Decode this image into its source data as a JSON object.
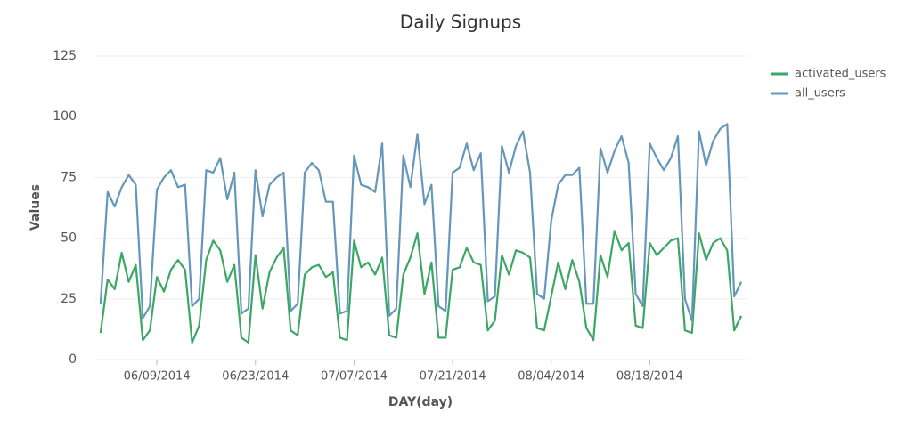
{
  "chart_data": {
    "type": "line",
    "title": "Daily Signups",
    "x_label": "DAY(day)",
    "y_label": "Values",
    "xlim": [
      "2014-05-31",
      "2014-09-01"
    ],
    "xticks": [
      {
        "value": "2014-06-09",
        "label": "06/09/2014"
      },
      {
        "value": "2014-06-23",
        "label": "06/23/2014"
      },
      {
        "value": "2014-07-07",
        "label": "07/07/2014"
      },
      {
        "value": "2014-07-21",
        "label": "07/21/2014"
      },
      {
        "value": "2014-08-04",
        "label": "08/04/2014"
      },
      {
        "value": "2014-08-18",
        "label": "08/18/2014"
      }
    ],
    "ylim": [
      0,
      125
    ],
    "yticks": [
      0,
      25,
      50,
      75,
      100,
      125
    ],
    "grid": true,
    "legend": "top-right",
    "x": [
      "2014-06-01",
      "2014-06-02",
      "2014-06-03",
      "2014-06-04",
      "2014-06-05",
      "2014-06-06",
      "2014-06-07",
      "2014-06-08",
      "2014-06-09",
      "2014-06-10",
      "2014-06-11",
      "2014-06-12",
      "2014-06-13",
      "2014-06-14",
      "2014-06-15",
      "2014-06-16",
      "2014-06-17",
      "2014-06-18",
      "2014-06-19",
      "2014-06-20",
      "2014-06-21",
      "2014-06-22",
      "2014-06-23",
      "2014-06-24",
      "2014-06-25",
      "2014-06-26",
      "2014-06-27",
      "2014-06-28",
      "2014-06-29",
      "2014-06-30",
      "2014-07-01",
      "2014-07-02",
      "2014-07-03",
      "2014-07-04",
      "2014-07-05",
      "2014-07-06",
      "2014-07-07",
      "2014-07-08",
      "2014-07-09",
      "2014-07-10",
      "2014-07-11",
      "2014-07-12",
      "2014-07-13",
      "2014-07-14",
      "2014-07-15",
      "2014-07-16",
      "2014-07-17",
      "2014-07-18",
      "2014-07-19",
      "2014-07-20",
      "2014-07-21",
      "2014-07-22",
      "2014-07-23",
      "2014-07-24",
      "2014-07-25",
      "2014-07-26",
      "2014-07-27",
      "2014-07-28",
      "2014-07-29",
      "2014-07-30",
      "2014-07-31",
      "2014-08-01",
      "2014-08-02",
      "2014-08-03",
      "2014-08-04",
      "2014-08-05",
      "2014-08-06",
      "2014-08-07",
      "2014-08-08",
      "2014-08-09",
      "2014-08-10",
      "2014-08-11",
      "2014-08-12",
      "2014-08-13",
      "2014-08-14",
      "2014-08-15",
      "2014-08-16",
      "2014-08-17",
      "2014-08-18",
      "2014-08-19",
      "2014-08-20",
      "2014-08-21",
      "2014-08-22",
      "2014-08-23",
      "2014-08-24",
      "2014-08-25",
      "2014-08-26",
      "2014-08-27",
      "2014-08-28",
      "2014-08-29",
      "2014-08-30",
      "2014-08-31"
    ],
    "series": [
      {
        "name": "activated_users",
        "color": "#3aa864",
        "values": [
          11,
          33,
          29,
          44,
          32,
          39,
          8,
          12,
          34,
          28,
          37,
          41,
          37,
          7,
          14,
          41,
          49,
          45,
          32,
          39,
          9,
          7,
          43,
          21,
          36,
          42,
          46,
          12,
          10,
          35,
          38,
          39,
          34,
          36,
          9,
          8,
          49,
          38,
          40,
          35,
          42,
          10,
          9,
          35,
          42,
          52,
          27,
          40,
          9,
          9,
          37,
          38,
          46,
          40,
          39,
          12,
          16,
          43,
          35,
          45,
          44,
          42,
          13,
          12,
          26,
          40,
          29,
          41,
          32,
          13,
          8,
          43,
          34,
          53,
          45,
          48,
          14,
          13,
          48,
          43,
          46,
          49,
          50,
          12,
          11,
          52,
          41,
          48,
          50,
          45,
          12,
          18
        ]
      },
      {
        "name": "all_users",
        "color": "#6497b9",
        "values": [
          23,
          69,
          63,
          71,
          76,
          72,
          17,
          22,
          70,
          75,
          78,
          71,
          72,
          22,
          25,
          78,
          77,
          83,
          66,
          77,
          19,
          21,
          78,
          59,
          72,
          75,
          77,
          20,
          23,
          77,
          81,
          78,
          65,
          65,
          19,
          20,
          84,
          72,
          71,
          69,
          89,
          18,
          21,
          84,
          71,
          93,
          64,
          72,
          22,
          20,
          77,
          79,
          89,
          78,
          85,
          24,
          26,
          88,
          77,
          88,
          94,
          77,
          27,
          25,
          57,
          72,
          76,
          76,
          79,
          23,
          23,
          87,
          77,
          86,
          92,
          81,
          27,
          22,
          89,
          83,
          78,
          83,
          92,
          25,
          16,
          94,
          80,
          90,
          95,
          97,
          26,
          32
        ]
      }
    ]
  }
}
